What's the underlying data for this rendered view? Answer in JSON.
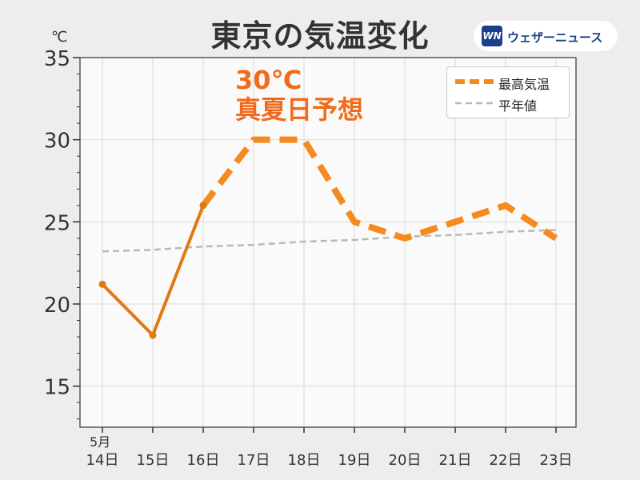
{
  "header": {
    "title": "東京の気温変化",
    "unit": "℃",
    "logo_mark": "WN",
    "logo_text": "ウェザーニュース"
  },
  "annotation": {
    "line1": "30℃",
    "line2": "真夏日予想"
  },
  "legend": {
    "max_temp": "最高気温",
    "normal": "平年値"
  },
  "colors": {
    "observed": "#e07a10",
    "forecast": "#f58a1f",
    "normal": "#b8b8b8",
    "annotation": "#f26a1b",
    "plot_bg": "#fbfafa",
    "grid": "#d9d9d9"
  },
  "chart_data": {
    "type": "line",
    "title": "東京の気温変化",
    "ylabel": "℃",
    "xlabel": "",
    "month_label": "5月",
    "categories": [
      "14日",
      "15日",
      "16日",
      "17日",
      "18日",
      "19日",
      "20日",
      "21日",
      "22日",
      "23日"
    ],
    "ylim": [
      12.5,
      35
    ],
    "yticks": [
      15,
      20,
      25,
      30,
      35
    ],
    "grid": true,
    "legend_position": "top-right",
    "series": [
      {
        "name": "最高気温",
        "values": [
          21.2,
          18.1,
          26,
          30,
          30,
          25,
          24,
          25,
          26,
          24
        ],
        "observed_until_index": 2,
        "style": "solid-then-dashed"
      },
      {
        "name": "平年値",
        "values": [
          23.2,
          23.3,
          23.5,
          23.6,
          23.8,
          23.9,
          24.1,
          24.2,
          24.4,
          24.5
        ],
        "style": "dashed"
      }
    ]
  }
}
